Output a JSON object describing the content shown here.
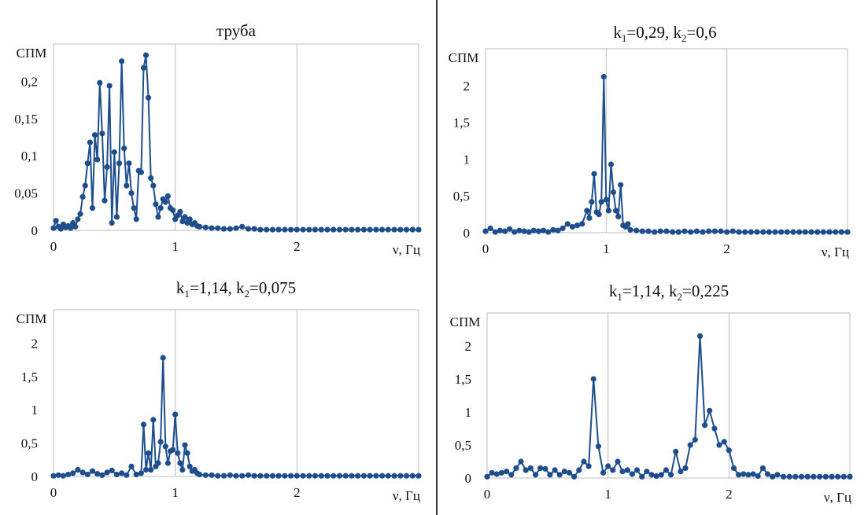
{
  "colors": {
    "series": "#1f4e8c",
    "grid": "#bdbdbd",
    "divider": "#333333"
  },
  "chart_data": [
    {
      "type": "line",
      "title": "труба",
      "title_parts": [
        {
          "text": "труба"
        }
      ],
      "ylabel": "СПМ",
      "xlabel": "ν, Гц",
      "xlim": [
        0,
        3
      ],
      "ylim": [
        0,
        0.25
      ],
      "xticks": [
        0,
        1,
        2
      ],
      "yticks": [
        0,
        0.05,
        0.1,
        0.15,
        0.2
      ],
      "xtick_labels": [
        "0",
        "1",
        "2"
      ],
      "ytick_labels": [
        "0",
        "0,05",
        "0,1",
        "0,15",
        "0,2"
      ],
      "grid": true,
      "series": [
        {
          "x": [
            0.0,
            0.02,
            0.04,
            0.06,
            0.08,
            0.1,
            0.12,
            0.14,
            0.16,
            0.18,
            0.2,
            0.22,
            0.24,
            0.26,
            0.28,
            0.3,
            0.32,
            0.34,
            0.36,
            0.38,
            0.4,
            0.42,
            0.44,
            0.46,
            0.48,
            0.5,
            0.52,
            0.54,
            0.56,
            0.58,
            0.6,
            0.62,
            0.64,
            0.66,
            0.68,
            0.7,
            0.72,
            0.74,
            0.76,
            0.78,
            0.8,
            0.82,
            0.84,
            0.86,
            0.88,
            0.9,
            0.92,
            0.94,
            0.96,
            0.98,
            1.0,
            1.02,
            1.04,
            1.06,
            1.08,
            1.1,
            1.12,
            1.14,
            1.16,
            1.18,
            1.2,
            1.25,
            1.3,
            1.35,
            1.4,
            1.45,
            1.5,
            1.55,
            1.6,
            1.65,
            1.7,
            1.75,
            1.8,
            1.85,
            1.9,
            1.95,
            2.0,
            2.05,
            2.1,
            2.15,
            2.2,
            2.25,
            2.3,
            2.35,
            2.4,
            2.45,
            2.5,
            2.55,
            2.6,
            2.65,
            2.7,
            2.75,
            2.8,
            2.85,
            2.9,
            2.95,
            3.0
          ],
          "y": [
            0.003,
            0.013,
            0.005,
            0.002,
            0.008,
            0.004,
            0.006,
            0.003,
            0.01,
            0.005,
            0.015,
            0.022,
            0.045,
            0.06,
            0.09,
            0.118,
            0.03,
            0.128,
            0.095,
            0.198,
            0.13,
            0.04,
            0.085,
            0.194,
            0.01,
            0.105,
            0.018,
            0.09,
            0.227,
            0.11,
            0.06,
            0.09,
            0.05,
            0.03,
            0.015,
            0.08,
            0.078,
            0.218,
            0.235,
            0.178,
            0.07,
            0.06,
            0.035,
            0.018,
            0.03,
            0.042,
            0.038,
            0.046,
            0.03,
            0.027,
            0.015,
            0.02,
            0.025,
            0.012,
            0.018,
            0.01,
            0.015,
            0.008,
            0.01,
            0.006,
            0.005,
            0.004,
            0.003,
            0.003,
            0.002,
            0.002,
            0.003,
            0.005,
            0.002,
            0.002,
            0.001,
            0.001,
            0.001,
            0.001,
            0.001,
            0.001,
            0.001,
            0.001,
            0.001,
            0.001,
            0.001,
            0.001,
            0.001,
            0.001,
            0.001,
            0.001,
            0.001,
            0.001,
            0.001,
            0.001,
            0.001,
            0.001,
            0.001,
            0.001,
            0.001,
            0.001,
            0.001
          ]
        }
      ]
    },
    {
      "type": "line",
      "title": "k1=0,29, k2=0,6",
      "title_parts": [
        {
          "text": "k"
        },
        {
          "text": "1",
          "sub": true
        },
        {
          "text": "=0,29, k"
        },
        {
          "text": "2",
          "sub": true
        },
        {
          "text": "=0,6"
        }
      ],
      "ylabel": "СПМ",
      "xlabel": "ν, Гц",
      "xlim": [
        0,
        3
      ],
      "ylim": [
        0,
        2.5
      ],
      "xticks": [
        0,
        1,
        2
      ],
      "yticks": [
        0,
        0.5,
        1,
        1.5,
        2
      ],
      "xtick_labels": [
        "0",
        "1",
        "2"
      ],
      "ytick_labels": [
        "0",
        "0,5",
        "1",
        "1,5",
        "2"
      ],
      "grid": true,
      "series": [
        {
          "x": [
            0.0,
            0.04,
            0.08,
            0.12,
            0.16,
            0.2,
            0.24,
            0.28,
            0.32,
            0.36,
            0.4,
            0.44,
            0.48,
            0.52,
            0.56,
            0.6,
            0.64,
            0.68,
            0.72,
            0.76,
            0.8,
            0.84,
            0.86,
            0.88,
            0.9,
            0.92,
            0.94,
            0.96,
            0.98,
            1.0,
            1.02,
            1.04,
            1.06,
            1.08,
            1.1,
            1.12,
            1.14,
            1.16,
            1.18,
            1.2,
            1.25,
            1.3,
            1.35,
            1.4,
            1.45,
            1.5,
            1.55,
            1.6,
            1.65,
            1.7,
            1.75,
            1.8,
            1.85,
            1.9,
            1.95,
            2.0,
            2.05,
            2.1,
            2.15,
            2.2,
            2.25,
            2.3,
            2.35,
            2.4,
            2.45,
            2.5,
            2.55,
            2.6,
            2.65,
            2.7,
            2.75,
            2.8,
            2.85,
            2.9,
            2.95,
            3.0
          ],
          "y": [
            0.02,
            0.06,
            0.01,
            0.03,
            0.02,
            0.05,
            0.01,
            0.03,
            0.02,
            0.01,
            0.03,
            0.02,
            0.03,
            0.01,
            0.04,
            0.03,
            0.06,
            0.12,
            0.08,
            0.1,
            0.12,
            0.3,
            0.2,
            0.42,
            0.8,
            0.28,
            0.25,
            0.42,
            2.12,
            0.45,
            0.3,
            0.93,
            0.55,
            0.3,
            0.22,
            0.65,
            0.1,
            0.08,
            0.12,
            0.04,
            0.03,
            0.02,
            0.02,
            0.01,
            0.02,
            0.02,
            0.01,
            0.01,
            0.02,
            0.01,
            0.02,
            0.01,
            0.02,
            0.02,
            0.02,
            0.01,
            0.02,
            0.01,
            0.01,
            0.01,
            0.01,
            0.01,
            0.01,
            0.01,
            0.01,
            0.01,
            0.01,
            0.01,
            0.01,
            0.01,
            0.01,
            0.01,
            0.01,
            0.01,
            0.01,
            0.01
          ]
        }
      ]
    },
    {
      "type": "line",
      "title": "k1=1,14, k2=0,075",
      "title_parts": [
        {
          "text": "k"
        },
        {
          "text": "1",
          "sub": true
        },
        {
          "text": "=1,14, k"
        },
        {
          "text": "2",
          "sub": true
        },
        {
          "text": "=0,075"
        }
      ],
      "ylabel": "СПМ",
      "xlabel": "ν, Гц",
      "xlim": [
        0,
        3
      ],
      "ylim": [
        0,
        2.5
      ],
      "xticks": [
        0,
        1,
        2
      ],
      "yticks": [
        0,
        0.5,
        1,
        1.5,
        2
      ],
      "xtick_labels": [
        "0",
        "1",
        "2"
      ],
      "ytick_labels": [
        "0",
        "0,5",
        "1",
        "1,5",
        "2"
      ],
      "grid": true,
      "series": [
        {
          "x": [
            0.0,
            0.04,
            0.08,
            0.12,
            0.16,
            0.2,
            0.24,
            0.28,
            0.32,
            0.36,
            0.4,
            0.44,
            0.48,
            0.52,
            0.56,
            0.6,
            0.64,
            0.68,
            0.72,
            0.74,
            0.76,
            0.78,
            0.8,
            0.82,
            0.84,
            0.86,
            0.88,
            0.9,
            0.92,
            0.94,
            0.96,
            0.98,
            1.0,
            1.02,
            1.04,
            1.06,
            1.08,
            1.1,
            1.12,
            1.14,
            1.16,
            1.18,
            1.2,
            1.25,
            1.3,
            1.35,
            1.4,
            1.45,
            1.5,
            1.55,
            1.6,
            1.65,
            1.7,
            1.75,
            1.8,
            1.85,
            1.9,
            1.95,
            2.0,
            2.05,
            2.1,
            2.15,
            2.2,
            2.25,
            2.3,
            2.35,
            2.4,
            2.45,
            2.5,
            2.55,
            2.6,
            2.65,
            2.7,
            2.75,
            2.8,
            2.85,
            2.9,
            2.95,
            3.0
          ],
          "y": [
            0.01,
            0.02,
            0.01,
            0.03,
            0.05,
            0.1,
            0.06,
            0.03,
            0.08,
            0.04,
            0.02,
            0.06,
            0.09,
            0.03,
            0.05,
            0.02,
            0.15,
            0.03,
            0.05,
            0.78,
            0.1,
            0.35,
            0.1,
            0.85,
            0.15,
            0.2,
            0.52,
            1.78,
            0.45,
            0.2,
            0.38,
            0.4,
            0.93,
            0.35,
            0.2,
            0.1,
            0.47,
            0.35,
            0.15,
            0.08,
            0.1,
            0.05,
            0.03,
            0.02,
            0.02,
            0.01,
            0.01,
            0.02,
            0.01,
            0.01,
            0.02,
            0.01,
            0.01,
            0.01,
            0.01,
            0.01,
            0.01,
            0.01,
            0.01,
            0.01,
            0.01,
            0.01,
            0.01,
            0.01,
            0.01,
            0.01,
            0.01,
            0.01,
            0.01,
            0.01,
            0.01,
            0.01,
            0.01,
            0.01,
            0.01,
            0.01,
            0.01,
            0.01,
            0.01
          ]
        }
      ]
    },
    {
      "type": "line",
      "title": "k1=1,14, k2=0,225",
      "title_parts": [
        {
          "text": "k"
        },
        {
          "text": "1",
          "sub": true
        },
        {
          "text": "=1,14, k"
        },
        {
          "text": "2",
          "sub": true
        },
        {
          "text": "=0,225"
        }
      ],
      "ylabel": "СПМ",
      "xlabel": "ν, Гц",
      "xlim": [
        0,
        3
      ],
      "ylim": [
        0,
        2.5
      ],
      "xticks": [
        0,
        1,
        2
      ],
      "yticks": [
        0,
        0.5,
        1,
        1.5,
        2
      ],
      "xtick_labels": [
        "0",
        "1",
        "2"
      ],
      "ytick_labels": [
        "0",
        "0,5",
        "1",
        "1,5",
        "2"
      ],
      "grid": true,
      "series": [
        {
          "x": [
            0.0,
            0.04,
            0.08,
            0.12,
            0.16,
            0.2,
            0.24,
            0.28,
            0.32,
            0.36,
            0.4,
            0.44,
            0.48,
            0.52,
            0.56,
            0.6,
            0.64,
            0.68,
            0.72,
            0.76,
            0.8,
            0.84,
            0.88,
            0.92,
            0.96,
            1.0,
            1.04,
            1.08,
            1.12,
            1.16,
            1.2,
            1.24,
            1.28,
            1.32,
            1.36,
            1.4,
            1.44,
            1.48,
            1.52,
            1.56,
            1.6,
            1.64,
            1.68,
            1.72,
            1.76,
            1.8,
            1.84,
            1.88,
            1.92,
            1.96,
            2.0,
            2.04,
            2.08,
            2.12,
            2.16,
            2.2,
            2.24,
            2.28,
            2.32,
            2.36,
            2.4,
            2.45,
            2.5,
            2.55,
            2.6,
            2.65,
            2.7,
            2.75,
            2.8,
            2.85,
            2.9,
            2.95,
            3.0
          ],
          "y": [
            0.02,
            0.08,
            0.06,
            0.08,
            0.1,
            0.05,
            0.15,
            0.25,
            0.12,
            0.15,
            0.05,
            0.15,
            0.14,
            0.05,
            0.12,
            0.05,
            0.1,
            0.08,
            0.02,
            0.12,
            0.25,
            0.18,
            1.5,
            0.48,
            0.08,
            0.18,
            0.12,
            0.25,
            0.1,
            0.12,
            0.06,
            0.12,
            0.02,
            0.1,
            0.05,
            0.03,
            0.05,
            0.12,
            0.05,
            0.4,
            0.1,
            0.15,
            0.5,
            0.58,
            2.15,
            0.8,
            1.02,
            0.75,
            0.5,
            0.55,
            0.42,
            0.15,
            0.05,
            0.06,
            0.05,
            0.06,
            0.03,
            0.15,
            0.06,
            0.02,
            0.05,
            0.02,
            0.02,
            0.02,
            0.02,
            0.02,
            0.02,
            0.02,
            0.02,
            0.02,
            0.02,
            0.02,
            0.02
          ]
        }
      ]
    }
  ]
}
